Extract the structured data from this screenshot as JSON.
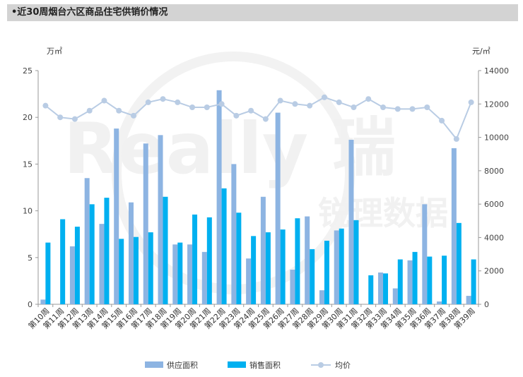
{
  "title": "•近30周烟台六区商品住宅供销价情况",
  "chart_data": {
    "type": "bar",
    "title": "•近30周烟台六区商品住宅供销价情况",
    "categories": [
      "第10周",
      "第11周",
      "第12周",
      "第13周",
      "第14周",
      "第15周",
      "第16周",
      "第17周",
      "第18周",
      "第19周",
      "第20周",
      "第21周",
      "第22周",
      "第23周",
      "第24周",
      "第25周",
      "第26周",
      "第27周",
      "第28周",
      "第29周",
      "第30周",
      "第31周",
      "第32周",
      "第33周",
      "第34周",
      "第35周",
      "第36周",
      "第37周",
      "第38周",
      "第39周"
    ],
    "left_axis": {
      "unit": "万㎡",
      "ylim": [
        0,
        25
      ],
      "ticks": [
        0,
        5,
        10,
        15,
        20,
        25
      ]
    },
    "right_axis": {
      "unit": "元/㎡",
      "ylim": [
        0,
        14000
      ],
      "ticks": [
        0,
        2000,
        4000,
        6000,
        8000,
        10000,
        12000,
        14000
      ]
    },
    "series": [
      {
        "name": "供应面积",
        "type": "bar",
        "axis": "left",
        "color": "#8db4e2",
        "values": [
          0.5,
          0,
          6.2,
          13.5,
          8.6,
          18.8,
          10.9,
          17.2,
          18.1,
          6.4,
          6.4,
          5.6,
          22.9,
          15.0,
          4.9,
          11.5,
          20.5,
          3.7,
          9.4,
          1.5,
          7.9,
          17.6,
          0,
          3.4,
          1.7,
          4.7,
          10.7,
          0.3,
          16.7,
          0.9
        ]
      },
      {
        "name": "销售面积",
        "type": "bar",
        "axis": "left",
        "color": "#00b0f0",
        "values": [
          6.6,
          9.1,
          8.3,
          10.7,
          11.4,
          7.0,
          7.2,
          7.7,
          11.5,
          6.6,
          9.6,
          9.3,
          12.4,
          9.8,
          7.3,
          7.7,
          8.0,
          9.2,
          5.9,
          6.8,
          8.1,
          9.0,
          3.1,
          3.3,
          4.8,
          5.6,
          5.1,
          5.2,
          8.7,
          4.8
        ]
      },
      {
        "name": "均价",
        "type": "line",
        "axis": "right",
        "color": "#b9cce4",
        "values": [
          11900,
          11200,
          11100,
          11600,
          12200,
          11600,
          11300,
          12100,
          12300,
          12100,
          11800,
          11800,
          12000,
          11300,
          11600,
          11100,
          12200,
          12000,
          11900,
          12400,
          12100,
          11800,
          12300,
          11800,
          11700,
          11700,
          11800,
          11000,
          9900,
          12100
        ]
      }
    ],
    "legend": {
      "position": "bottom"
    },
    "grid": false
  },
  "watermark": {
    "brand": "Really",
    "cn_top": "瑞",
    "cn_bottom": "锐理数据"
  }
}
